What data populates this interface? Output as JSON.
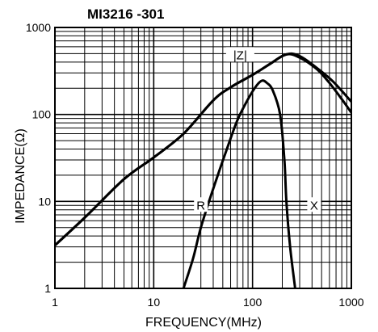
{
  "chart_data": {
    "type": "line",
    "title": "MI3216 -301",
    "xlabel": "FREQUENCY(MHz)",
    "ylabel": "IMPEDANCE(Ω)",
    "x_scale": "log",
    "y_scale": "log",
    "xlim": [
      1,
      1000
    ],
    "ylim": [
      1,
      1000
    ],
    "x_ticks": [
      {
        "value": 1,
        "label": "1"
      },
      {
        "value": 10,
        "label": "10"
      },
      {
        "value": 100,
        "label": "100"
      },
      {
        "value": 1000,
        "label": "1000"
      }
    ],
    "y_ticks": [
      {
        "value": 1,
        "label": "1"
      },
      {
        "value": 10,
        "label": "10"
      },
      {
        "value": 100,
        "label": "100"
      },
      {
        "value": 1000,
        "label": "1000"
      }
    ],
    "grid": true,
    "legend": "none",
    "series": [
      {
        "name": "|Z|",
        "points": [
          [
            0.9,
            2.8
          ],
          [
            2,
            6.5
          ],
          [
            5,
            18
          ],
          [
            10,
            32
          ],
          [
            20,
            60
          ],
          [
            40,
            145
          ],
          [
            60,
            205
          ],
          [
            100,
            285
          ],
          [
            150,
            380
          ],
          [
            220,
            490
          ],
          [
            300,
            450
          ],
          [
            450,
            330
          ],
          [
            600,
            230
          ],
          [
            800,
            150
          ],
          [
            1000,
            105
          ]
        ]
      },
      {
        "name": "R",
        "points": [
          [
            20,
            1
          ],
          [
            25,
            2.2
          ],
          [
            30,
            5
          ],
          [
            40,
            14
          ],
          [
            55,
            40
          ],
          [
            70,
            85
          ],
          [
            90,
            150
          ],
          [
            110,
            215
          ],
          [
            125,
            245
          ],
          [
            140,
            230
          ],
          [
            160,
            190
          ],
          [
            190,
            100
          ],
          [
            210,
            30
          ],
          [
            220,
            10
          ],
          [
            240,
            3
          ],
          [
            270,
            1
          ]
        ]
      },
      {
        "name": "X",
        "points": [
          [
            0.9,
            2.8
          ],
          [
            2,
            6.5
          ],
          [
            5,
            18
          ],
          [
            10,
            32
          ],
          [
            20,
            60
          ],
          [
            40,
            145
          ],
          [
            60,
            205
          ],
          [
            100,
            285
          ],
          [
            150,
            380
          ],
          [
            200,
            470
          ],
          [
            250,
            500
          ],
          [
            320,
            450
          ],
          [
            450,
            340
          ],
          [
            650,
            240
          ],
          [
            1000,
            140
          ]
        ]
      }
    ],
    "annotations": [
      {
        "text": "|Z|",
        "x": 75,
        "y": 480
      },
      {
        "text": "R",
        "x": 30,
        "y": 9
      },
      {
        "text": "X",
        "x": 420,
        "y": 9
      }
    ]
  }
}
